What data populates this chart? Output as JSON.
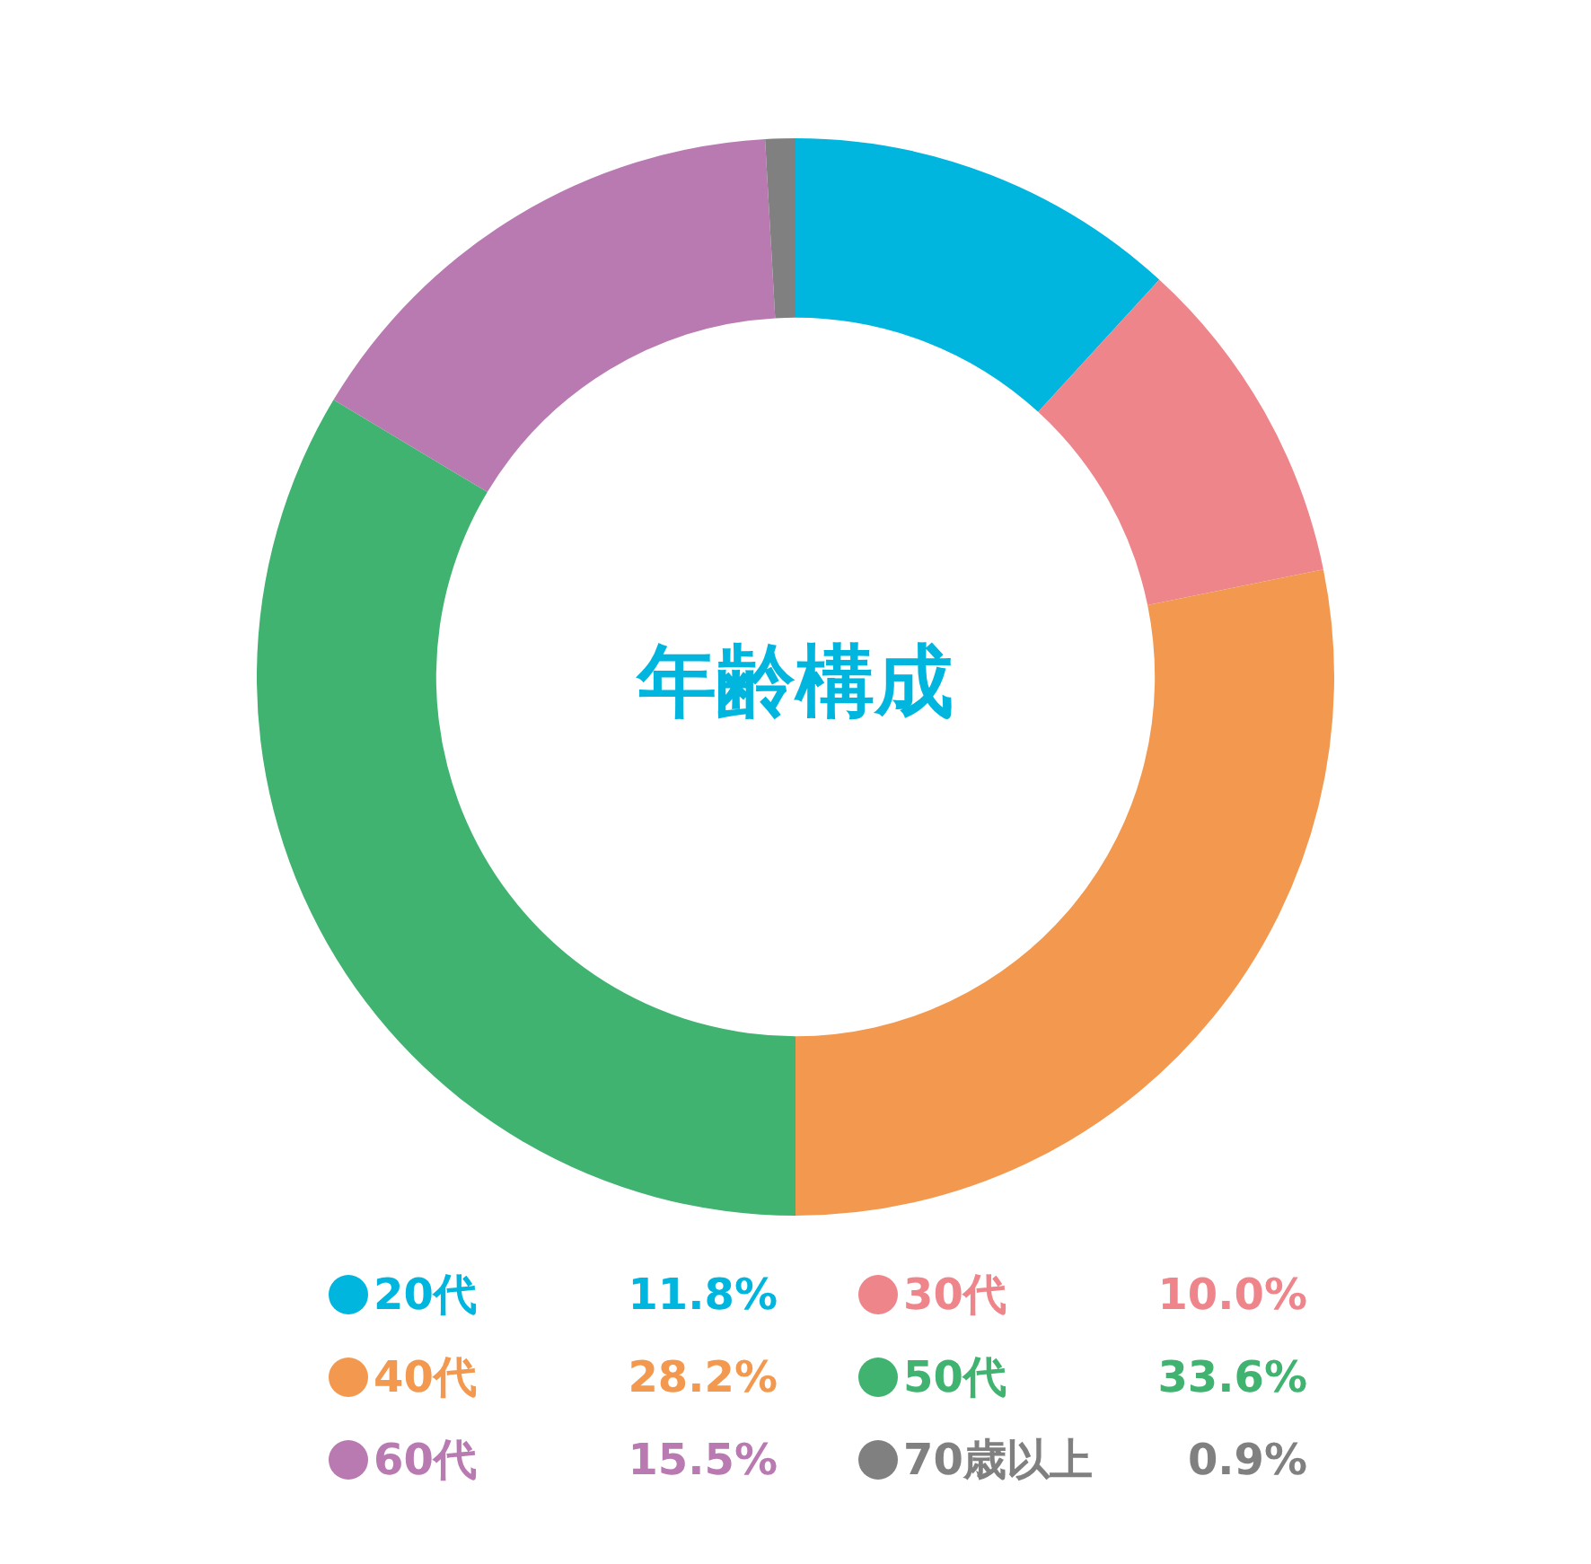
{
  "chart_data": {
    "type": "donut",
    "title": "年齢構成",
    "categories": [
      "20代",
      "30代",
      "40代",
      "50代",
      "60代",
      "70歳以上"
    ],
    "values": [
      11.8,
      10.0,
      28.2,
      33.6,
      15.5,
      0.9
    ],
    "value_labels": [
      "11.8%",
      "10.0%",
      "28.2%",
      "33.6%",
      "15.5%",
      "0.9%"
    ],
    "colors": [
      "#00b6de",
      "#ee858b",
      "#f2994f",
      "#3fb36f",
      "#b87ab1",
      "#808080"
    ],
    "legend": "bottom"
  }
}
